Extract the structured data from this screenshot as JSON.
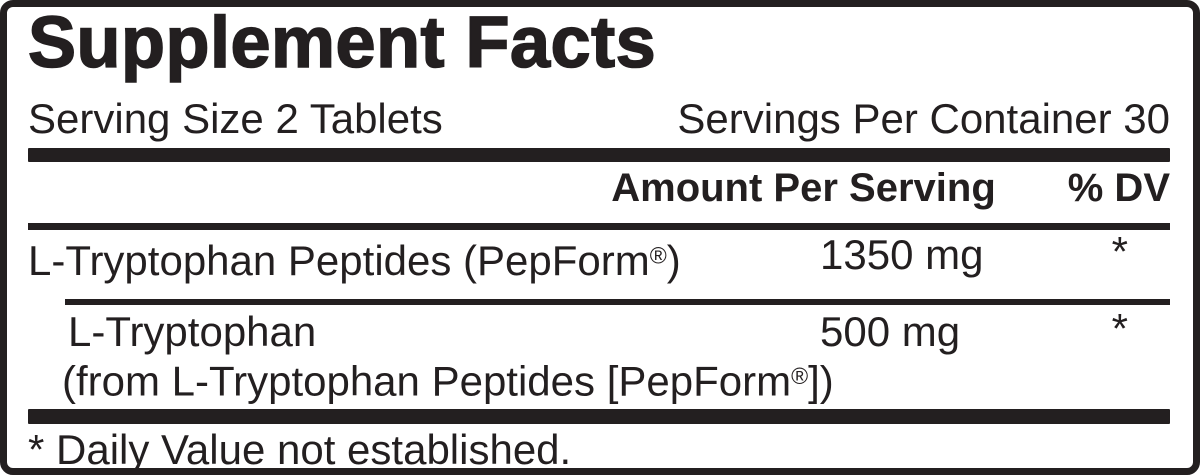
{
  "colors": {
    "ink": "#231f20",
    "paper": "#ffffff"
  },
  "label": {
    "title": "Supplement Facts",
    "serving": {
      "size": "Serving Size 2 Tablets",
      "per_container": "Servings Per Container 30"
    },
    "columns": {
      "amount": "Amount Per Serving",
      "dv": "% DV"
    },
    "rows": [
      {
        "name_pre": "L-Tryptophan Peptides (PepForm",
        "trademark": "®",
        "name_post": ")",
        "amount": "1350 mg",
        "dv": "*"
      },
      {
        "name": "L-Tryptophan",
        "source_pre": "(from L-Tryptophan Peptides [PepForm",
        "trademark": "®",
        "source_post": "])",
        "amount": "500 mg",
        "dv": "*"
      }
    ],
    "footnote": "* Daily Value not established."
  }
}
